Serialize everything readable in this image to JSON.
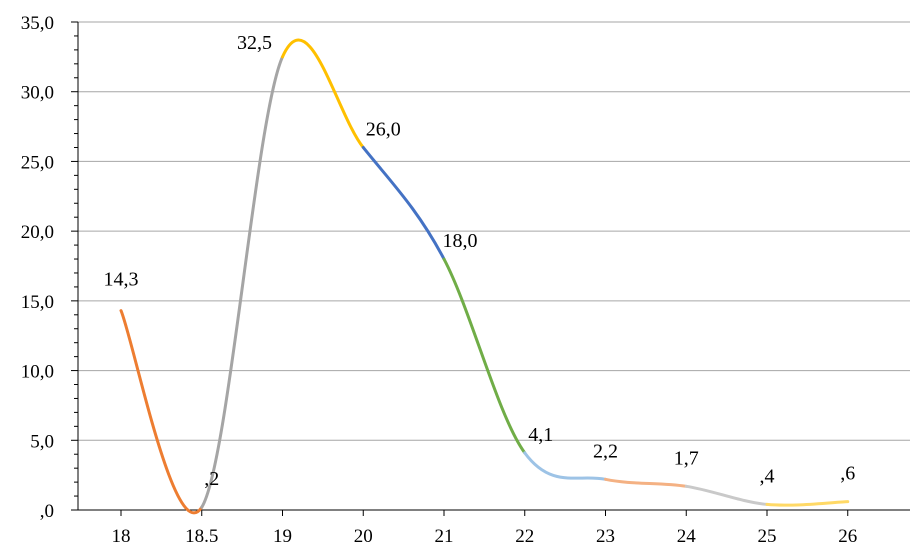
{
  "chart_data": {
    "type": "line",
    "title": "",
    "xlabel": "",
    "ylabel": "",
    "categories": [
      "18",
      "18.5",
      "19",
      "20",
      "21",
      "22",
      "23",
      "24",
      "25",
      "26"
    ],
    "values": [
      14.3,
      0.2,
      32.5,
      26.0,
      18.0,
      4.1,
      2.2,
      1.7,
      0.4,
      0.6
    ],
    "data_labels": [
      "14,3",
      ",2",
      "32,5",
      "26,0",
      "18,0",
      "4,1",
      "2,2",
      "1,7",
      ",4",
      ",6"
    ],
    "ylim": [
      0,
      35
    ],
    "y_ticks": [
      0,
      5,
      10,
      15,
      20,
      25,
      30,
      35
    ],
    "y_tick_labels": [
      ",0",
      "5,0",
      "10,0",
      "15,0",
      "20,0",
      "25,0",
      "30,0",
      "35,0"
    ],
    "grid": true,
    "legend": "none",
    "smooth": true,
    "segment_colors": [
      "#ed7d31",
      "#a5a5a5",
      "#ffc000",
      "#4472c4",
      "#70ad47",
      "#9dc3e6",
      "#f4b183",
      "#c9c9c9",
      "#ffd966"
    ]
  }
}
